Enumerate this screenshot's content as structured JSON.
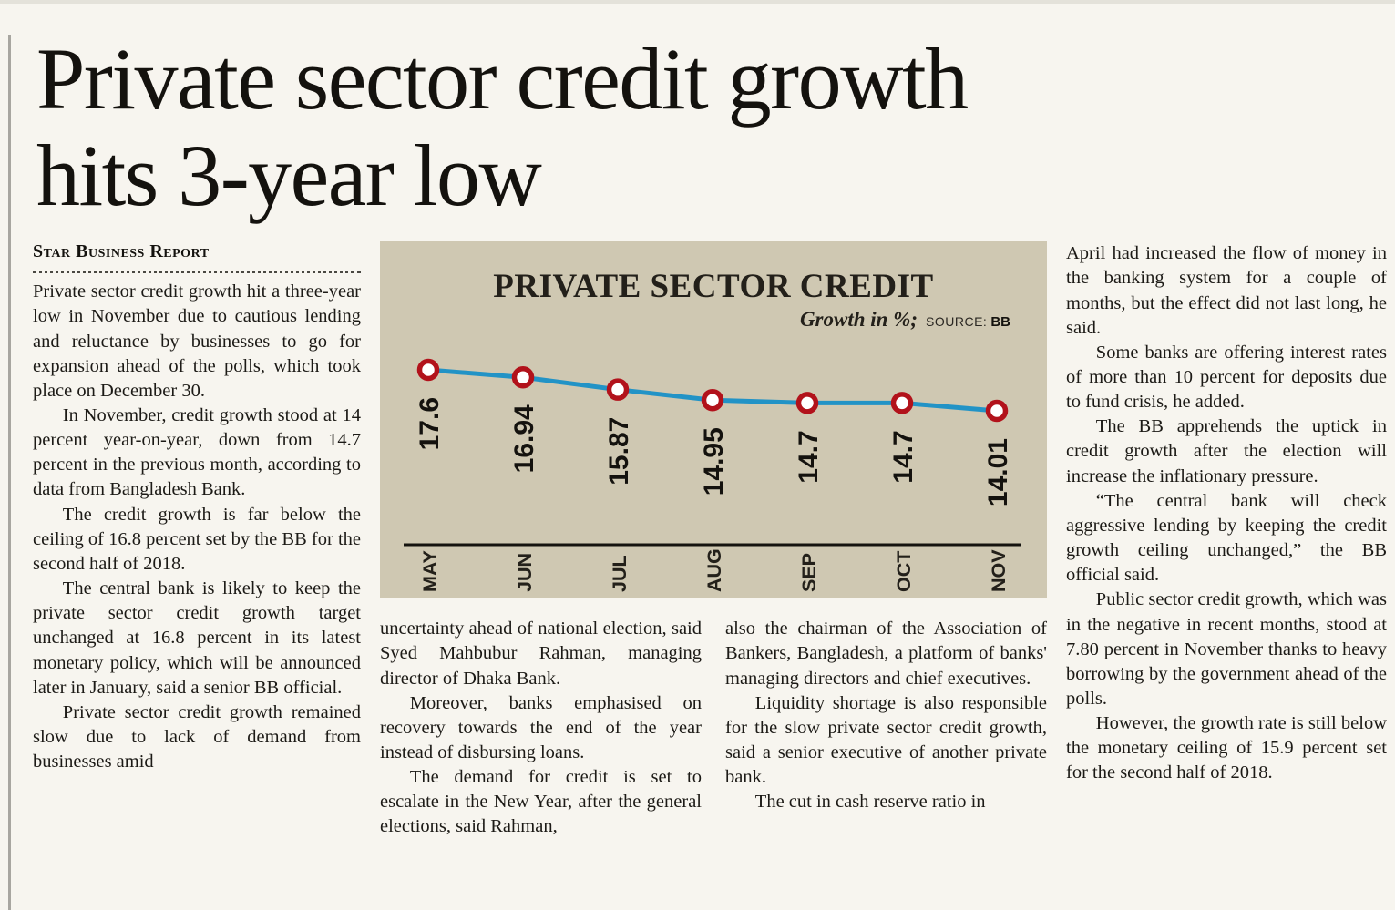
{
  "page": {
    "headline_line1": "Private sector credit growth",
    "headline_line2": "hits 3-year low",
    "byline": "Star Business Report"
  },
  "columns": {
    "col1": [
      "Private sector credit growth hit a three-year low in November due to cautious lending and reluctance by businesses to go for expansion ahead of the polls, which took place on December 30.",
      "In November, credit growth stood at 14 percent year-on-year, down from 14.7 percent in the previous month, according to data from Bangladesh Bank.",
      "The credit growth is far below the ceiling of 16.8 percent set by the BB for the second half of 2018.",
      "The central bank is likely to keep the private sector credit growth target unchanged at 16.8 percent in its latest monetary policy, which will be announced later in January, said a senior BB official.",
      "Private sector credit growth remained slow due to lack of demand from businesses amid"
    ],
    "col2": [
      "uncertainty ahead of national election, said Syed Mahbubur Rahman, managing director of Dhaka Bank.",
      "Moreover, banks emphasised on recovery towards the end of the year instead of disbursing loans.",
      "The demand for credit is set to escalate in the New Year, after the general elections, said Rahman,"
    ],
    "col3": [
      "also the chairman of the Association of Bankers, Bangladesh, a platform of banks' managing directors and chief executives.",
      "Liquidity shortage is also responsible for the slow private sector credit growth, said a senior executive of another private bank.",
      "The cut in cash reserve ratio in"
    ],
    "col4": [
      "April had increased the flow of money in the banking system for a couple of months, but the effect did not last long, he said.",
      "Some banks are offering interest rates of more than 10 percent for deposits due to fund crisis, he added.",
      "The BB apprehends the uptick in credit growth after the election will increase the inflationary pressure.",
      "“The central bank will check aggressive lending by keeping the credit growth ceiling unchanged,” the BB official said.",
      "Public sector credit growth, which was in the negative in recent months, stood at 7.80 percent in November thanks to heavy borrowing by the government ahead of the polls.",
      "However, the growth rate is still below the monetary ceiling of 15.9 percent set for the second half of 2018."
    ]
  },
  "chart": {
    "title": "PRIVATE SECTOR CREDIT",
    "growth_label": "Growth in %;",
    "source_label": "SOURCE:",
    "source_value": "BB",
    "background_color": "#cfc8b2",
    "line_color": "#2293c6",
    "marker_color": "#b2121b",
    "marker_fill": "#ffffff",
    "text_color": "#14120e"
  },
  "chart_data": {
    "type": "line",
    "title": "PRIVATE SECTOR CREDIT",
    "ylabel": "Growth in %",
    "source": "BB",
    "categories": [
      "MAY",
      "JUN",
      "JUL",
      "AUG",
      "SEP",
      "OCT",
      "NOV"
    ],
    "values": [
      17.6,
      16.94,
      15.87,
      14.95,
      14.7,
      14.7,
      14.01
    ],
    "ylim": [
      13.5,
      18
    ],
    "grid": false,
    "legend": false
  }
}
